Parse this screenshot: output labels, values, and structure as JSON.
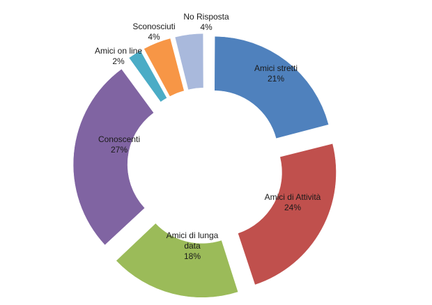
{
  "chart_data": {
    "type": "pie",
    "style": "exploded donut",
    "title": "",
    "legend": "none",
    "start_angle_deg": 0,
    "slices": [
      {
        "name": "Amici stretti",
        "label_lines": [
          "Amici stretti",
          "21%"
        ],
        "value": 21,
        "color": "#4f81bd"
      },
      {
        "name": "Amici di Attività",
        "label_lines": [
          "Amici di Attività",
          "24%"
        ],
        "value": 24,
        "color": "#c0504d"
      },
      {
        "name": "Amici di lunga data",
        "label_lines": [
          "Amici di lunga",
          "data",
          "18%"
        ],
        "value": 18,
        "color": "#9bbb59"
      },
      {
        "name": "Conoscenti",
        "label_lines": [
          "Conoscenti",
          "27%"
        ],
        "value": 27,
        "color": "#8064a2"
      },
      {
        "name": "Amici on line",
        "label_lines": [
          "Amici on line",
          "2%"
        ],
        "value": 2,
        "color": "#4bacc6"
      },
      {
        "name": "Sconosciuti",
        "label_lines": [
          "Sconosciuti",
          "4%"
        ],
        "value": 4,
        "color": "#f79646"
      },
      {
        "name": "No Risposta",
        "label_lines": [
          "No Risposta",
          "4%"
        ],
        "value": 4,
        "color": "#a9b9dc"
      }
    ]
  }
}
